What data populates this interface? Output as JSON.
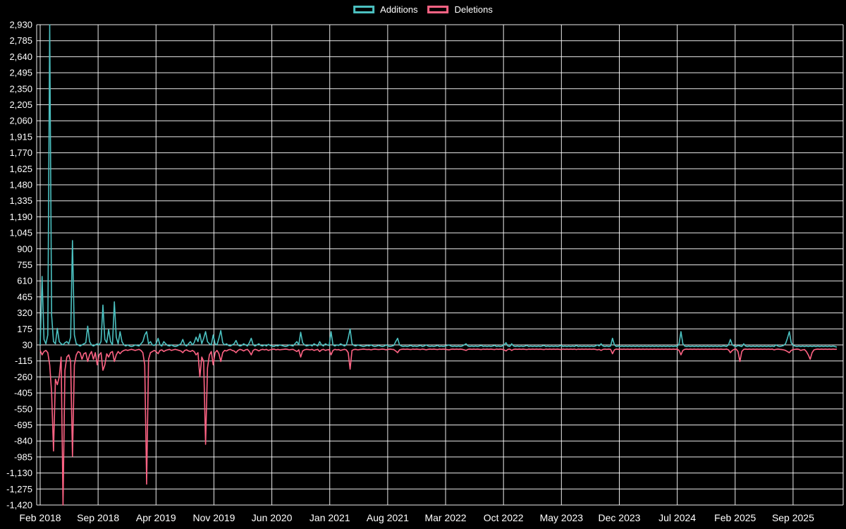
{
  "chart": {
    "background_color": "#000000",
    "grid_color": "#ffffff",
    "text_color": "#ffffff"
  },
  "chart_data": {
    "type": "line",
    "title": "",
    "xlabel": "",
    "ylabel": "",
    "grid": true,
    "legend_position": "top",
    "x_unit": "week",
    "weeks_total": 420,
    "x_tick_week_interval": 30.46,
    "x_tick_labels": [
      "Feb 2018",
      "Sep 2018",
      "Apr 2019",
      "Nov 2019",
      "Jun 2020",
      "Jan 2021",
      "Aug 2021",
      "Mar 2022",
      "Oct 2022",
      "May 2023",
      "Dec 2023",
      "Jul 2024",
      "Feb 2025",
      "Sep 2025"
    ],
    "ylim": [
      -1420,
      2930
    ],
    "ytick_step": 145,
    "ytick_values": [
      2930,
      2785,
      2640,
      2495,
      2350,
      2205,
      2060,
      1915,
      1770,
      1625,
      1480,
      1335,
      1190,
      1045,
      900,
      755,
      610,
      465,
      320,
      175,
      30,
      -115,
      -260,
      -405,
      -550,
      -695,
      -840,
      -985,
      -1130,
      -1275,
      -1420
    ],
    "ytick_labels": [
      "2,930",
      "2,785",
      "2,640",
      "2,495",
      "2,350",
      "2,205",
      "2,060",
      "1,915",
      "1,770",
      "1,625",
      "1,480",
      "1,335",
      "1,190",
      "1,045",
      "900",
      "755",
      "610",
      "465",
      "320",
      "175",
      "30",
      "-115",
      "-260",
      "-405",
      "-550",
      "-695",
      "-840",
      "-985",
      "-1,130",
      "-1,275",
      "-1,420"
    ],
    "series": [
      {
        "name": "Additions",
        "color": "#4bc0c0",
        "values": [
          30,
          650,
          80,
          40,
          120,
          2930,
          300,
          60,
          40,
          180,
          60,
          40,
          30,
          50,
          60,
          40,
          100,
          975,
          120,
          40,
          30,
          20,
          30,
          40,
          50,
          200,
          60,
          30,
          20,
          30,
          40,
          30,
          60,
          390,
          80,
          50,
          170,
          60,
          30,
          420,
          100,
          40,
          150,
          60,
          30,
          20,
          30,
          20,
          15,
          20,
          30,
          25,
          20,
          40,
          60,
          120,
          150,
          40,
          60,
          30,
          25,
          40,
          90,
          30,
          20,
          60,
          40,
          25,
          20,
          30,
          20,
          15,
          20,
          30,
          40,
          80,
          30,
          20,
          40,
          60,
          30,
          50,
          100,
          60,
          130,
          40,
          90,
          150,
          60,
          40,
          30,
          120,
          40,
          30,
          90,
          160,
          50,
          30,
          40,
          25,
          20,
          30,
          40,
          70,
          30,
          20,
          25,
          40,
          30,
          20,
          50,
          90,
          30,
          20,
          30,
          40,
          25,
          20,
          30,
          20,
          35,
          25,
          20,
          15,
          25,
          20,
          30,
          25,
          20,
          15,
          20,
          30,
          25,
          20,
          40,
          60,
          30,
          145,
          50,
          30,
          20,
          25,
          30,
          20,
          40,
          30,
          20,
          60,
          30,
          20,
          40,
          30,
          25,
          150,
          30,
          20,
          30,
          25,
          40,
          30,
          20,
          30,
          90,
          175,
          40,
          25,
          20,
          30,
          25,
          20,
          15,
          20,
          25,
          20,
          30,
          20,
          15,
          20,
          25,
          20,
          15,
          20,
          30,
          20,
          15,
          20,
          25,
          60,
          90,
          30,
          20,
          15,
          20,
          15,
          20,
          25,
          15,
          20,
          15,
          20,
          25,
          15,
          20,
          30,
          20,
          15,
          20,
          15,
          20,
          25,
          15,
          20,
          15,
          20,
          25,
          30,
          20,
          15,
          20,
          15,
          20,
          15,
          20,
          30,
          40,
          20,
          15,
          20,
          15,
          20,
          15,
          20,
          25,
          15,
          20,
          15,
          20,
          15,
          20,
          25,
          15,
          20,
          15,
          20,
          30,
          50,
          20,
          15,
          40,
          20,
          15,
          20,
          15,
          20,
          15,
          20,
          25,
          15,
          20,
          15,
          20,
          15,
          20,
          15,
          20,
          25,
          15,
          20,
          15,
          20,
          15,
          20,
          15,
          20,
          25,
          15,
          20,
          15,
          20,
          15,
          20,
          15,
          25,
          15,
          20,
          15,
          20,
          15,
          20,
          15,
          20,
          15,
          20,
          30,
          20,
          40,
          20,
          15,
          20,
          15,
          20,
          90,
          30,
          15,
          20,
          15,
          20,
          15,
          20,
          15,
          20,
          15,
          20,
          15,
          20,
          15,
          20,
          15,
          20,
          15,
          20,
          15,
          20,
          15,
          20,
          15,
          20,
          15,
          20,
          15,
          20,
          15,
          20,
          15,
          20,
          15,
          40,
          150,
          40,
          20,
          15,
          20,
          15,
          20,
          15,
          20,
          15,
          20,
          15,
          20,
          15,
          20,
          15,
          20,
          15,
          20,
          15,
          20,
          15,
          20,
          20,
          15,
          30,
          80,
          30,
          20,
          15,
          25,
          20,
          15,
          40,
          20,
          15,
          20,
          15,
          20,
          15,
          20,
          15,
          20,
          15,
          20,
          15,
          20,
          15,
          20,
          15,
          30,
          20,
          15,
          20,
          25,
          40,
          90,
          150,
          50,
          25,
          20,
          15,
          20,
          15,
          20,
          15,
          20,
          15,
          20,
          15,
          20,
          15,
          20,
          15,
          20,
          15,
          20,
          15,
          20,
          15,
          20,
          15,
          10
        ]
      },
      {
        "name": "Deletions",
        "color": "#ff6384",
        "values": [
          -20,
          -60,
          -30,
          -20,
          -40,
          -150,
          -400,
          -930,
          -280,
          -330,
          -260,
          -80,
          -1420,
          -200,
          -80,
          -60,
          -120,
          -980,
          -150,
          -60,
          -30,
          -40,
          -100,
          -50,
          -40,
          -120,
          -60,
          -30,
          -100,
          -40,
          -150,
          -60,
          -40,
          -200,
          -150,
          -50,
          -80,
          -40,
          -30,
          -120,
          -60,
          -30,
          -50,
          -30,
          -20,
          -15,
          -20,
          -15,
          -10,
          -15,
          -20,
          -15,
          -10,
          -20,
          -40,
          -150,
          -1230,
          -100,
          -40,
          -30,
          -20,
          -30,
          -50,
          -20,
          -15,
          -30,
          -20,
          -15,
          -10,
          -20,
          -15,
          -10,
          -15,
          -20,
          -25,
          -40,
          -20,
          -15,
          -25,
          -30,
          -20,
          -30,
          -60,
          -40,
          -260,
          -80,
          -120,
          -870,
          -180,
          -60,
          -30,
          -150,
          -40,
          -20,
          -50,
          -120,
          -40,
          -20,
          -25,
          -15,
          -10,
          -20,
          -25,
          -40,
          -20,
          -10,
          -15,
          -25,
          -15,
          -10,
          -30,
          -60,
          -20,
          -10,
          -15,
          -25,
          -15,
          -10,
          -15,
          -10,
          -20,
          -15,
          -10,
          -8,
          -15,
          -10,
          -15,
          -12,
          -10,
          -8,
          -10,
          -15,
          -12,
          -10,
          -20,
          -30,
          -15,
          -80,
          -25,
          -15,
          -10,
          -12,
          -15,
          -10,
          -20,
          -15,
          -10,
          -30,
          -15,
          -10,
          -20,
          -15,
          -12,
          -60,
          -20,
          -10,
          -15,
          -12,
          -20,
          -15,
          -10,
          -15,
          -40,
          -190,
          -20,
          -12,
          -10,
          -15,
          -12,
          -10,
          -8,
          -10,
          -12,
          -10,
          -15,
          -10,
          -8,
          -10,
          -12,
          -10,
          -8,
          -10,
          -15,
          -10,
          -8,
          -10,
          -12,
          -25,
          -40,
          -15,
          -10,
          -8,
          -10,
          -8,
          -10,
          -12,
          -8,
          -10,
          -8,
          -10,
          -12,
          -8,
          -10,
          -15,
          -10,
          -8,
          -10,
          -8,
          -10,
          -12,
          -8,
          -10,
          -8,
          -10,
          -12,
          -15,
          -10,
          -8,
          -10,
          -8,
          -10,
          -8,
          -10,
          -15,
          -20,
          -10,
          -8,
          -10,
          -8,
          -10,
          -8,
          -10,
          -12,
          -8,
          -10,
          -8,
          -10,
          -8,
          -10,
          -12,
          -8,
          -10,
          -8,
          -10,
          -15,
          -25,
          -10,
          -8,
          -20,
          -10,
          -8,
          -10,
          -8,
          -10,
          -8,
          -10,
          -12,
          -8,
          -10,
          -8,
          -10,
          -8,
          -10,
          -8,
          -10,
          -12,
          -8,
          -10,
          -8,
          -10,
          -8,
          -10,
          -8,
          -10,
          -12,
          -8,
          -10,
          -8,
          -10,
          -8,
          -10,
          -8,
          -12,
          -8,
          -10,
          -8,
          -10,
          -8,
          -10,
          -8,
          -10,
          -8,
          -10,
          -15,
          -10,
          -20,
          -10,
          -8,
          -10,
          -8,
          -10,
          -50,
          -15,
          -8,
          -10,
          -8,
          -10,
          -8,
          -10,
          -8,
          -10,
          -8,
          -10,
          -8,
          -10,
          -8,
          -10,
          -8,
          -10,
          -8,
          -10,
          -8,
          -10,
          -8,
          -10,
          -8,
          -10,
          -8,
          -10,
          -8,
          -10,
          -8,
          -10,
          -8,
          -10,
          -8,
          -20,
          -60,
          -20,
          -10,
          -8,
          -10,
          -8,
          -10,
          -8,
          -10,
          -8,
          -10,
          -8,
          -10,
          -8,
          -10,
          -8,
          -10,
          -8,
          -10,
          -8,
          -10,
          -8,
          -10,
          -10,
          -8,
          -15,
          -40,
          -20,
          -10,
          -8,
          -30,
          -120,
          -30,
          -10,
          -8,
          -10,
          -8,
          -10,
          -8,
          -10,
          -8,
          -10,
          -8,
          -10,
          -8,
          -10,
          -8,
          -10,
          -8,
          -15,
          -10,
          -8,
          -10,
          -12,
          -15,
          -20,
          -30,
          -40,
          -20,
          -12,
          -10,
          -8,
          -10,
          -20,
          -15,
          -12,
          -30,
          -60,
          -100,
          -40,
          -15,
          -10,
          -8,
          -10,
          -8,
          -10,
          -8,
          -10,
          -8,
          -10,
          -8,
          -10,
          -8
        ]
      }
    ]
  }
}
